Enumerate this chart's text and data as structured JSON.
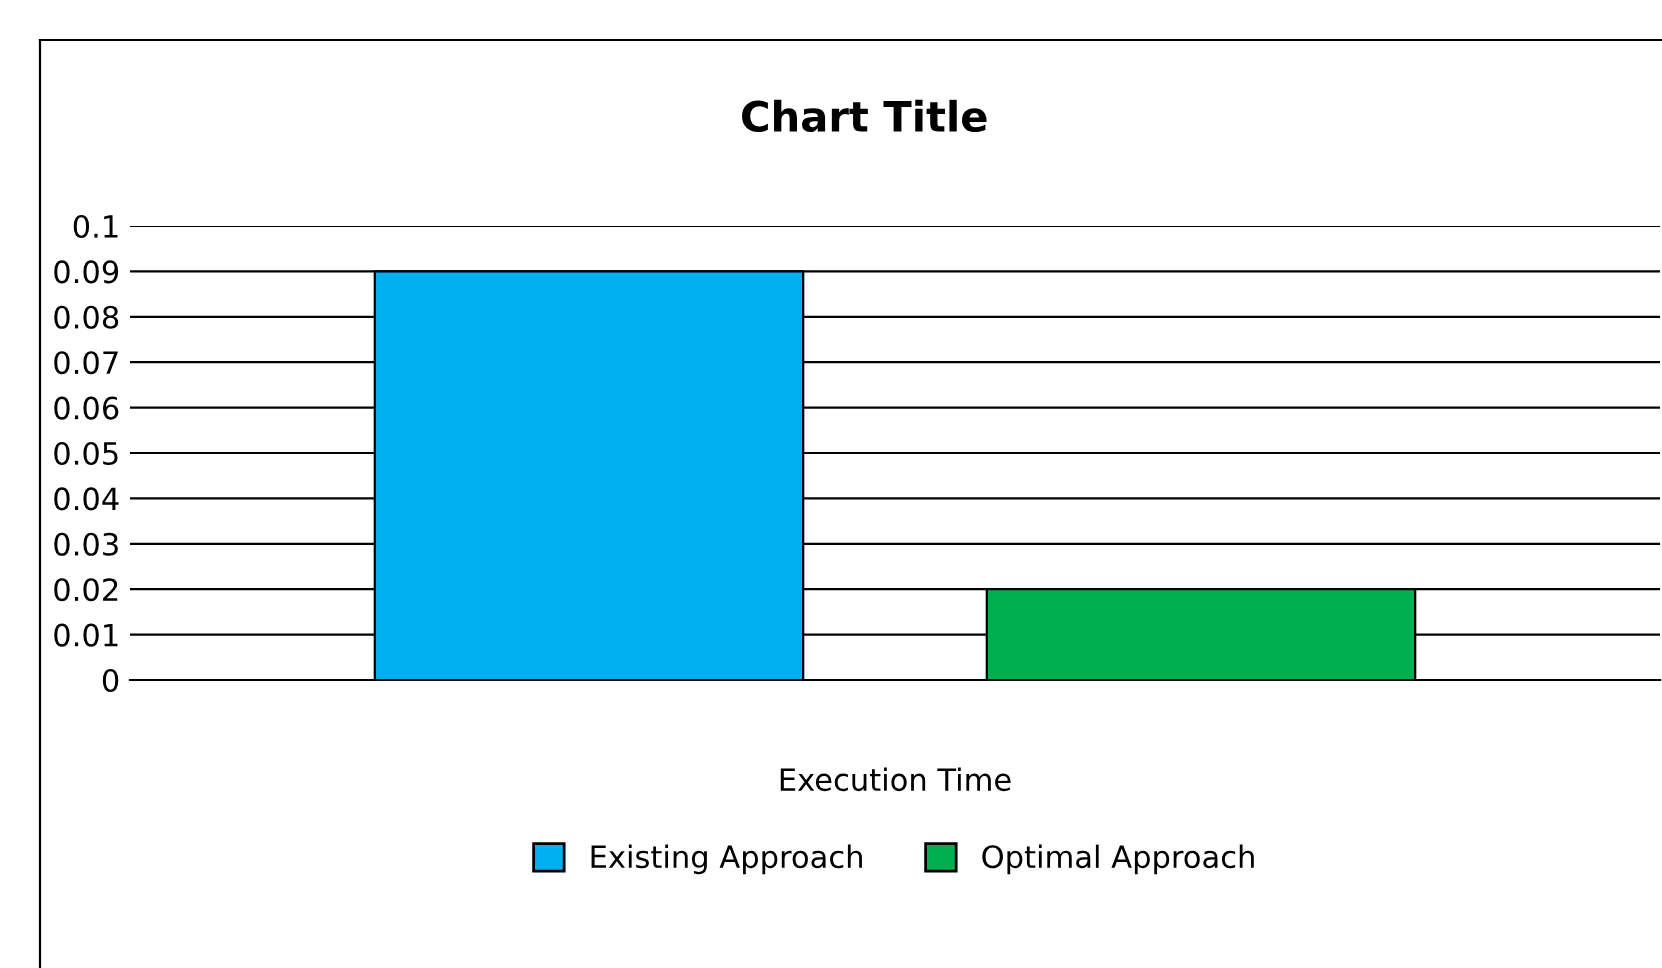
{
  "chart_data": {
    "type": "bar",
    "title": "Chart Title",
    "categories": [
      null
    ],
    "xlabel": "Execution Time",
    "series": [
      {
        "name": "Existing Approach",
        "color": "#00b0f0",
        "values": [
          0.09
        ]
      },
      {
        "name": "Optimal Approach",
        "color": "#00b050",
        "values": [
          0.02
        ]
      }
    ],
    "ylim": [
      0,
      0.1
    ],
    "yticks": [
      0,
      0.01,
      0.02,
      0.03,
      0.04,
      0.05,
      0.06,
      0.07,
      0.08,
      0.09,
      0.1
    ],
    "grid": "y",
    "legend": "bottom"
  }
}
